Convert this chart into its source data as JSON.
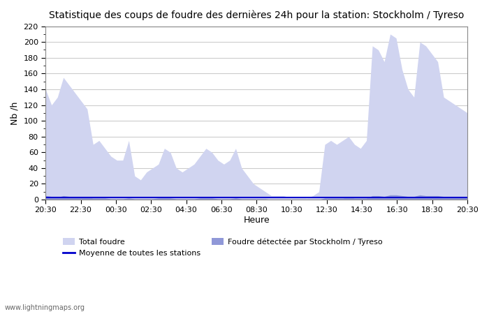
{
  "title": "Statistique des coups de foudre des dernières 24h pour la station: Stockholm / Tyreso",
  "ylabel": "Nb /h",
  "xlabel": "Heure",
  "ylim": [
    0,
    220
  ],
  "yticks": [
    0,
    20,
    40,
    60,
    80,
    100,
    120,
    140,
    160,
    180,
    200,
    220
  ],
  "xtick_labels": [
    "20:30",
    "22:30",
    "00:30",
    "02:30",
    "04:30",
    "06:30",
    "08:30",
    "10:30",
    "12:30",
    "14:30",
    "16:30",
    "18:30",
    "20:30"
  ],
  "color_total": "#d0d4f0",
  "color_station": "#9098d8",
  "color_mean_line": "#0000cc",
  "bg_color": "#ffffff",
  "grid_color": "#cccccc",
  "watermark": "www.lightningmaps.org",
  "legend": {
    "total": "Total foudre",
    "station": "Foudre détectée par Stockholm / Tyreso",
    "mean": "Moyenne de toutes les stations"
  },
  "total_foudre": [
    140,
    120,
    130,
    155,
    145,
    135,
    125,
    115,
    70,
    75,
    65,
    55,
    50,
    50,
    75,
    30,
    25,
    35,
    40,
    45,
    65,
    60,
    40,
    35,
    40,
    45,
    55,
    65,
    60,
    50,
    45,
    50,
    65,
    40,
    30,
    20,
    15,
    10,
    5,
    5,
    5,
    3,
    3,
    3,
    2,
    5,
    10,
    70,
    75,
    70,
    75,
    80,
    70,
    65,
    75,
    195,
    190,
    175,
    210,
    205,
    165,
    140,
    130,
    200,
    195,
    185,
    175,
    130,
    125,
    120,
    115,
    110
  ],
  "station_foudre": [
    5,
    4,
    3,
    5,
    4,
    4,
    3,
    3,
    2,
    2,
    2,
    1,
    1,
    1,
    2,
    1,
    1,
    1,
    1,
    2,
    2,
    2,
    1,
    1,
    1,
    1,
    2,
    2,
    2,
    1,
    1,
    1,
    2,
    1,
    1,
    1,
    1,
    1,
    0,
    0,
    0,
    0,
    0,
    0,
    0,
    0,
    0,
    2,
    2,
    2,
    2,
    3,
    2,
    2,
    2,
    5,
    5,
    4,
    6,
    6,
    5,
    4,
    4,
    6,
    5,
    5,
    5,
    4,
    4,
    4,
    4,
    4
  ],
  "mean_line": [
    3,
    3,
    3,
    3,
    3,
    3,
    3,
    3,
    3,
    3,
    3,
    3,
    3,
    3,
    3,
    3,
    3,
    3,
    3,
    3,
    3,
    3,
    3,
    3,
    3,
    3,
    3,
    3,
    3,
    3,
    3,
    3,
    3,
    3,
    3,
    3,
    3,
    3,
    3,
    3,
    3,
    3,
    3,
    3,
    3,
    3,
    3,
    3,
    3,
    3,
    3,
    3,
    3,
    3,
    3,
    3,
    3,
    3,
    3,
    3,
    3,
    3,
    3,
    3,
    3,
    3,
    3,
    3,
    3,
    3,
    3,
    3
  ]
}
